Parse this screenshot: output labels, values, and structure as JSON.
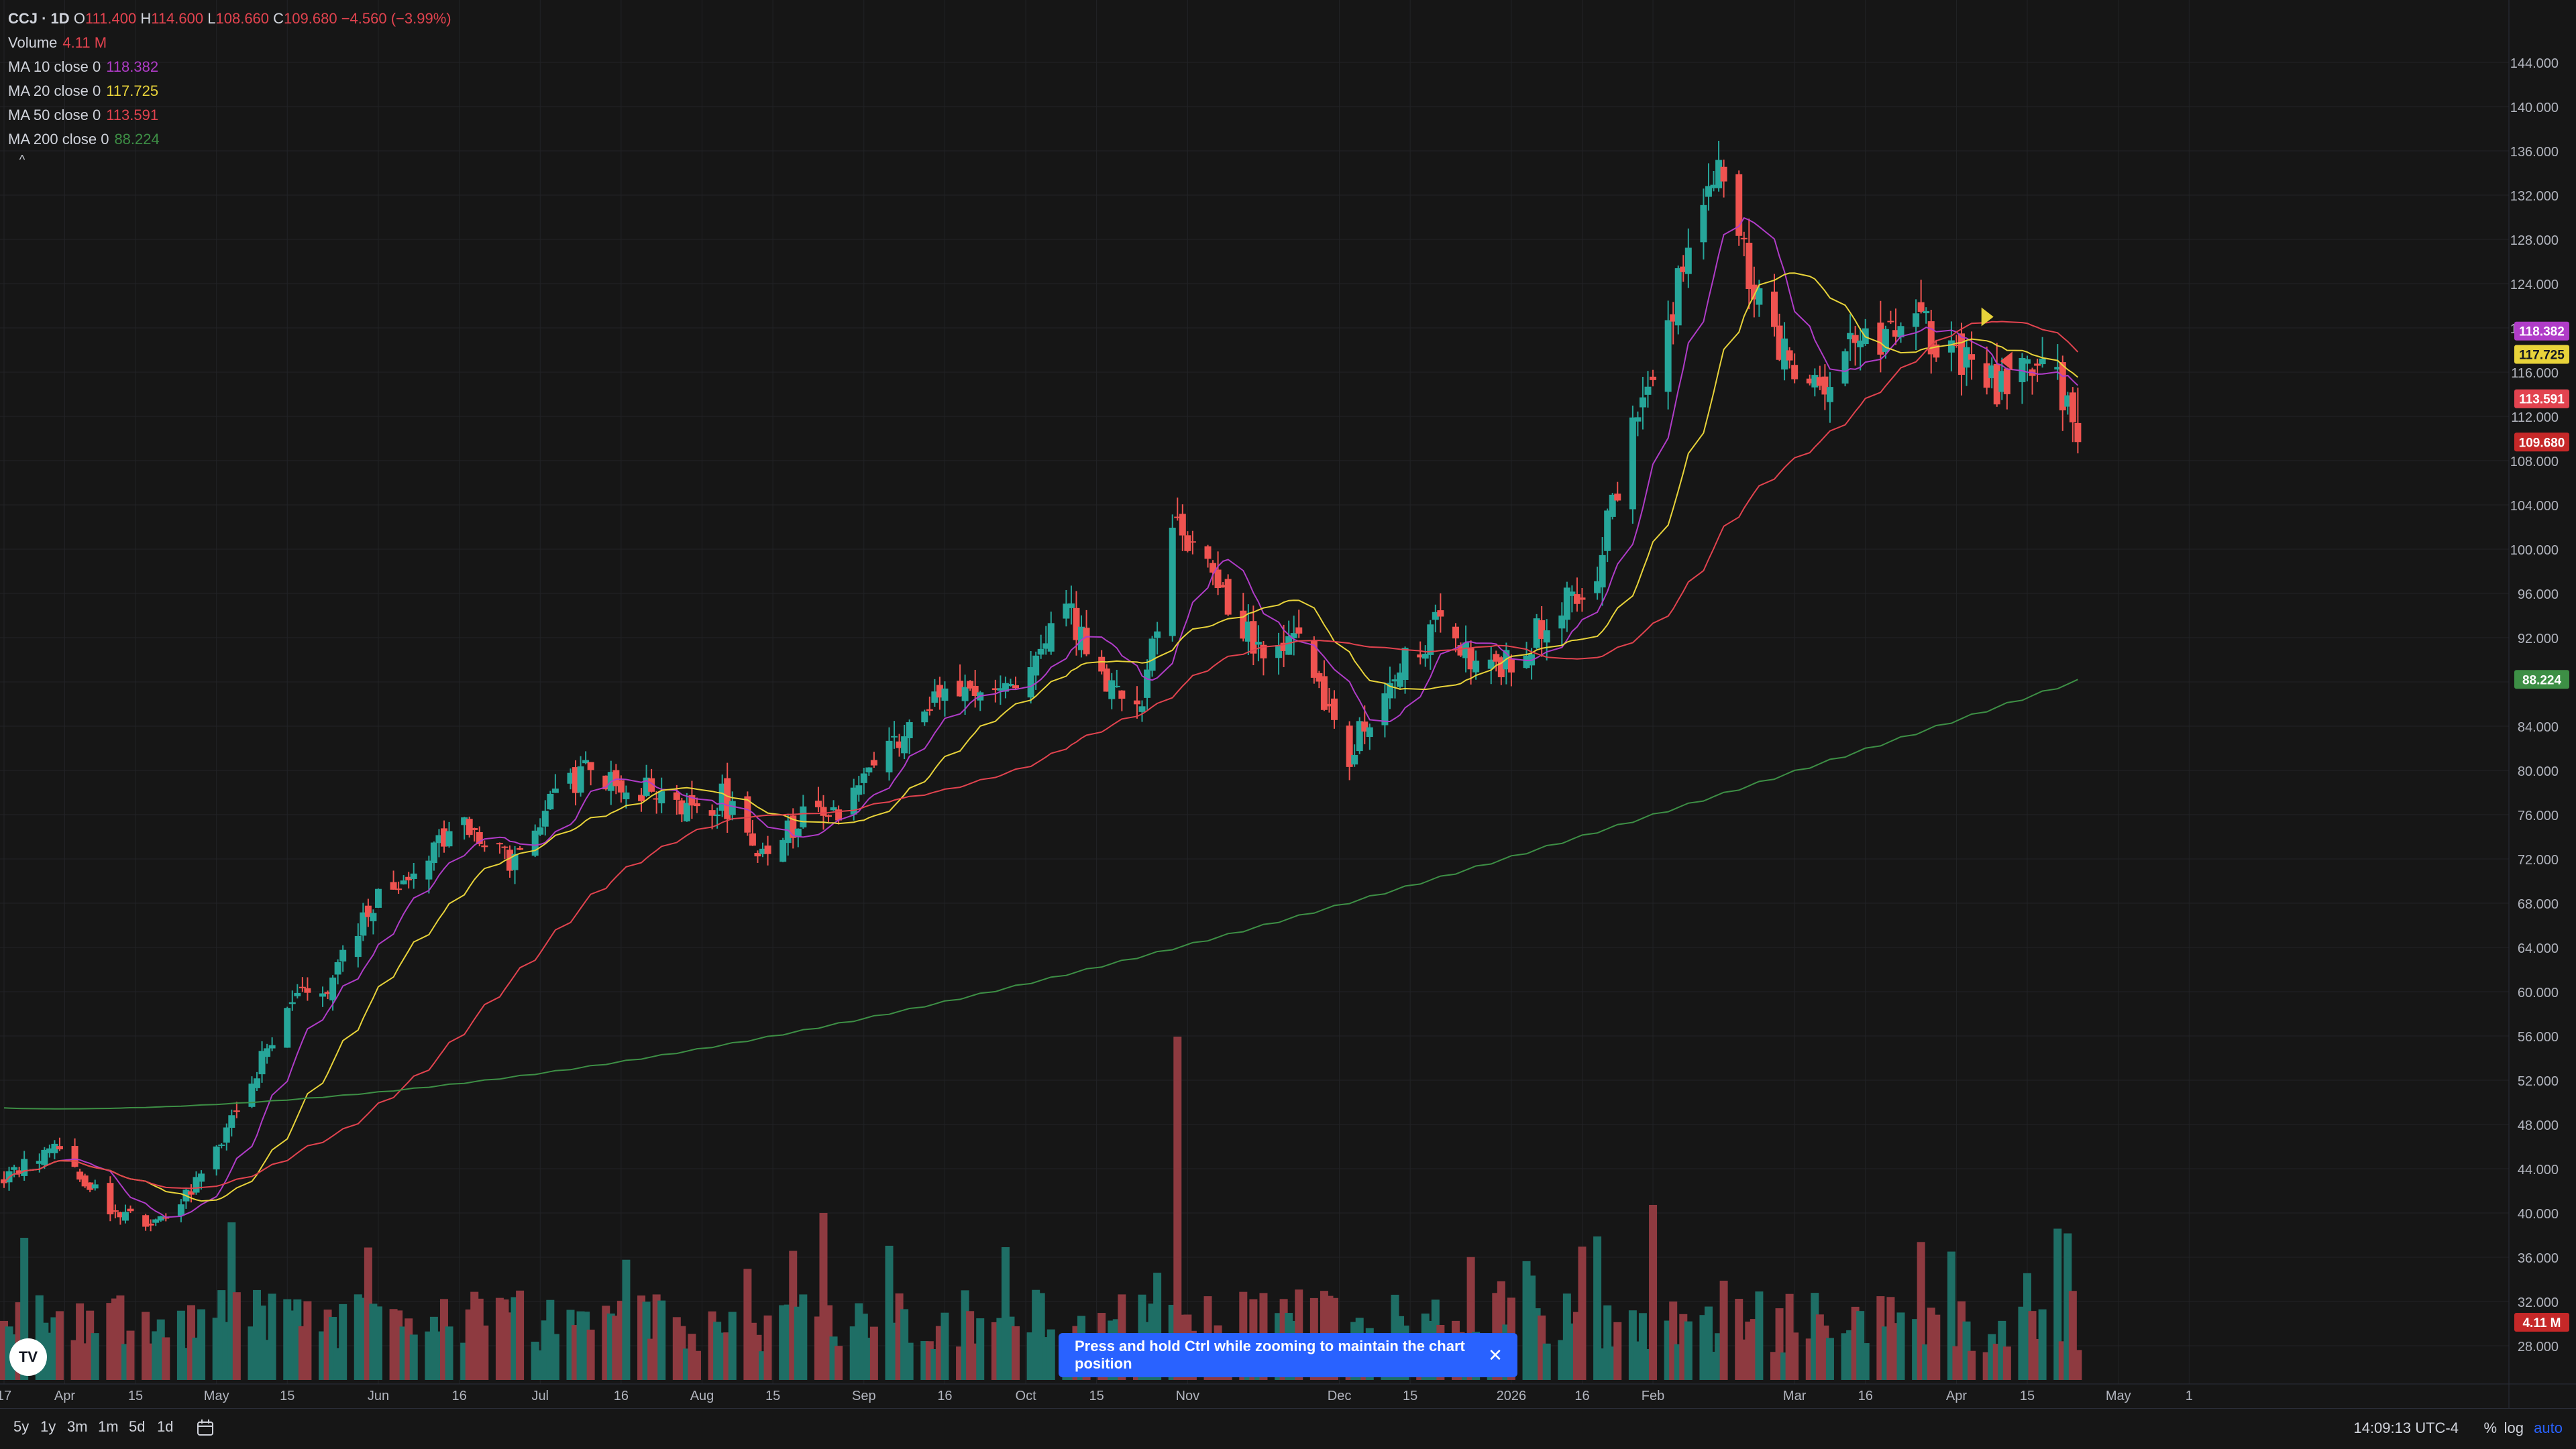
{
  "legend": {
    "symbol": "CCJ · 1D",
    "open_label": "O",
    "open": "111.400",
    "high_label": "H",
    "high": "114.600",
    "low_label": "L",
    "low": "108.660",
    "close_label": "C",
    "close": "109.680",
    "change": "−4.560 (−3.99%)",
    "volume_label": "Volume",
    "volume": "4.11 M",
    "ma10_label": "MA 10 close 0",
    "ma10": "118.382",
    "ma20_label": "MA 20 close 0",
    "ma20": "117.725",
    "ma50_label": "MA 50 close 0",
    "ma50": "113.591",
    "ma200_label": "MA 200 close 0",
    "ma200": "88.224",
    "collapse_glyph": "^"
  },
  "toast": {
    "text": "Press and hold Ctrl while zooming to maintain the chart position",
    "close": "✕"
  },
  "bottom": {
    "timeframes": [
      "5y",
      "1y",
      "3m",
      "1m",
      "5d",
      "1d"
    ],
    "clock": "14:09:13 UTC-4",
    "percent": "%",
    "log": "log",
    "auto": "auto"
  },
  "logo": "TV",
  "colors": {
    "up": "#26a69a",
    "down": "#ef5350",
    "ma10": "#b03cc8",
    "ma20": "#e8d33a",
    "ma50": "#e2434f",
    "ma200": "#3d8f45",
    "background": "#161616",
    "grid": "#222326",
    "accent": "#2962ff"
  },
  "chart_data": {
    "type": "candlestick",
    "y_axis": {
      "min": 26,
      "max": 146,
      "ticks": [
        "28.000",
        "32.000",
        "36.000",
        "40.000",
        "44.000",
        "48.000",
        "52.000",
        "56.000",
        "60.000",
        "64.000",
        "68.000",
        "72.000",
        "76.000",
        "80.000",
        "84.000",
        "88.000",
        "92.000",
        "96.000",
        "100.000",
        "104.000",
        "108.000",
        "112.000",
        "116.000",
        "120.000",
        "124.000",
        "128.000",
        "132.000",
        "136.000",
        "140.000",
        "144.000"
      ]
    },
    "x_axis": {
      "labels": [
        "17",
        "Apr",
        "15",
        "May",
        "15",
        "Jun",
        "16",
        "Jul",
        "16",
        "Aug",
        "15",
        "Sep",
        "16",
        "Oct",
        "15",
        "Nov",
        "Dec",
        "15",
        "2026",
        "16",
        "Feb",
        "Mar",
        "16",
        "Apr",
        "15",
        "May",
        "1"
      ],
      "label_days": [
        0,
        12,
        26,
        42,
        56,
        74,
        90,
        106,
        122,
        138,
        152,
        170,
        186,
        202,
        216,
        234,
        264,
        278,
        298,
        312,
        326,
        354,
        368,
        386,
        400,
        418,
        432
      ],
      "total_days": 442
    },
    "last_values": {
      "ma10": {
        "label": "118.382",
        "value": 118.382
      },
      "ma20": {
        "label": "117.725",
        "value": 117.725
      },
      "close": {
        "label": "109.680",
        "value": 109.68
      },
      "ma50": {
        "label": "113.591",
        "value": 113.591
      },
      "ma200": {
        "label": "88.224",
        "value": 88.224
      },
      "volume": {
        "label": "4.11 M"
      }
    },
    "close_anchors": [
      [
        0,
        43.2
      ],
      [
        10,
        45.8
      ],
      [
        22,
        40.0
      ],
      [
        30,
        39.0
      ],
      [
        40,
        43.5
      ],
      [
        50,
        53.0
      ],
      [
        58,
        60.0
      ],
      [
        64,
        60.5
      ],
      [
        72,
        67.5
      ],
      [
        82,
        72.0
      ],
      [
        90,
        75.0
      ],
      [
        100,
        72.0
      ],
      [
        108,
        77.0
      ],
      [
        116,
        80.0
      ],
      [
        124,
        79.0
      ],
      [
        134,
        76.0
      ],
      [
        142,
        77.5
      ],
      [
        150,
        72.0
      ],
      [
        158,
        75.5
      ],
      [
        166,
        76.5
      ],
      [
        176,
        82.5
      ],
      [
        184,
        87.0
      ],
      [
        194,
        85.5
      ],
      [
        202,
        89.0
      ],
      [
        210,
        95.0
      ],
      [
        218,
        87.0
      ],
      [
        224,
        85.0
      ],
      [
        232,
        102.5
      ],
      [
        238,
        99.0
      ],
      [
        246,
        92.0
      ],
      [
        256,
        91.0
      ],
      [
        266,
        81.5
      ],
      [
        274,
        89.0
      ],
      [
        284,
        93.5
      ],
      [
        294,
        88.5
      ],
      [
        304,
        93.0
      ],
      [
        314,
        97.0
      ],
      [
        322,
        110.0
      ],
      [
        332,
        125.0
      ],
      [
        338,
        134.5
      ],
      [
        346,
        124.0
      ],
      [
        356,
        113.5
      ],
      [
        366,
        118.0
      ],
      [
        376,
        121.0
      ],
      [
        386,
        118.0
      ],
      [
        396,
        114.0
      ],
      [
        404,
        118.0
      ],
      [
        410,
        109.7
      ]
    ],
    "last_ohlc": {
      "open": 111.4,
      "high": 114.6,
      "low": 108.66,
      "close": 109.68
    },
    "volume_spike_day": 232,
    "markers": [
      {
        "day": 392,
        "price": 121.0,
        "color": "#e8d33a",
        "dir": "right"
      },
      {
        "day": 396,
        "price": 117.0,
        "color": "#ef5350",
        "dir": "left"
      }
    ]
  }
}
